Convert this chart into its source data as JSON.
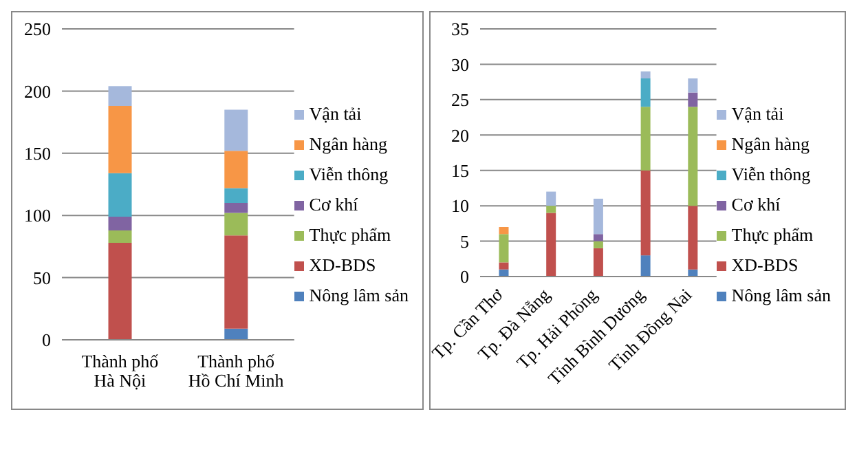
{
  "chart_data": [
    {
      "type": "bar",
      "stacked": true,
      "categories": [
        "Thành phố\nHà Nội",
        "Thành phố\nHồ Chí Minh"
      ],
      "series": [
        {
          "name": "Nông lâm sản",
          "color": "#4f81bd",
          "values": [
            null,
            9
          ]
        },
        {
          "name": "XD-BDS",
          "color": "#c0504d",
          "values": [
            78,
            75
          ]
        },
        {
          "name": "Thực phẩm",
          "color": "#9bbb59",
          "values": [
            10,
            18
          ]
        },
        {
          "name": "Cơ khí",
          "color": "#8064a2",
          "values": [
            11,
            8
          ]
        },
        {
          "name": "Viễn thông",
          "color": "#4bacc6",
          "values": [
            35,
            12
          ]
        },
        {
          "name": "Ngân hàng",
          "color": "#f79646",
          "values": [
            54,
            30
          ]
        },
        {
          "name": "Vận tải",
          "color": "#a5b8dc",
          "values": [
            16,
            33
          ]
        }
      ],
      "ylim": [
        0,
        250
      ],
      "yticks": [
        0,
        50,
        100,
        150,
        200,
        250
      ],
      "grid": "y",
      "legend": "right"
    },
    {
      "type": "bar",
      "stacked": true,
      "categories": [
        "Tp. Cần Thơ",
        "Tp. Đà Nẵng",
        "Tp. Hải Phòng",
        "Tỉnh Bình Dương",
        "Tỉnh Đồng Nai"
      ],
      "series": [
        {
          "name": "Nông lâm sản",
          "color": "#4f81bd",
          "values": [
            1,
            0,
            0,
            3,
            1
          ]
        },
        {
          "name": "XD-BDS",
          "color": "#c0504d",
          "values": [
            1,
            9,
            4,
            12,
            9
          ]
        },
        {
          "name": "Thực phẩm",
          "color": "#9bbb59",
          "values": [
            4,
            1,
            1,
            9,
            14
          ]
        },
        {
          "name": "Cơ khí",
          "color": "#8064a2",
          "values": [
            0,
            0,
            1,
            0,
            2
          ]
        },
        {
          "name": "Viễn thông",
          "color": "#4bacc6",
          "values": [
            0,
            0,
            0,
            4,
            0
          ]
        },
        {
          "name": "Ngân hàng",
          "color": "#f79646",
          "values": [
            1,
            0,
            0,
            0,
            0
          ]
        },
        {
          "name": "Vận tải",
          "color": "#a5b8dc",
          "values": [
            0,
            2,
            5,
            1,
            2
          ]
        }
      ],
      "ylim": [
        0,
        35
      ],
      "yticks": [
        0,
        5,
        10,
        15,
        20,
        25,
        30,
        35
      ],
      "grid": "y",
      "legend": "right"
    }
  ]
}
